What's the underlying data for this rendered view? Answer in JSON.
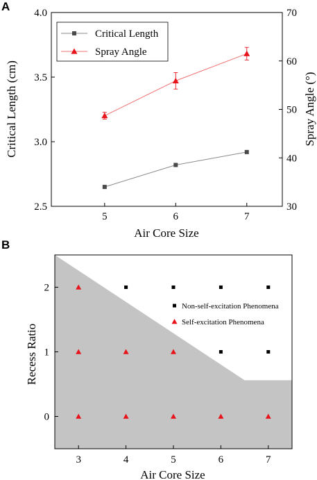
{
  "chart_data": [
    {
      "panel": "A",
      "type": "line",
      "xlabel": "Air Core Size",
      "ylabel_left": "Critical Length (cm)",
      "ylabel_right": "Spray Angle (°)",
      "x": [
        5,
        6,
        7
      ],
      "xticks": [
        "5",
        "6",
        "7"
      ],
      "xlim": [
        4.25,
        7.5
      ],
      "ylim_left": [
        2.5,
        4.0
      ],
      "yticks_left": [
        "2.5",
        "3.0",
        "3.5",
        "4.0"
      ],
      "ylim_right": [
        30,
        70
      ],
      "yticks_right": [
        "30",
        "40",
        "50",
        "60",
        "70"
      ],
      "legend_position": "top-left",
      "series": [
        {
          "name": "Critical Length",
          "axis": "left",
          "marker": "square",
          "color": "#4a4a4a",
          "values": [
            2.65,
            2.82,
            2.92
          ]
        },
        {
          "name": "Spray Angle",
          "axis": "right",
          "marker": "triangle",
          "color": "#e8141c",
          "values": [
            48.7,
            55.9,
            61.5
          ],
          "error": [
            0.7,
            1.7,
            1.3
          ]
        }
      ]
    },
    {
      "panel": "B",
      "type": "scatter",
      "xlabel": "Air Core Size",
      "ylabel": "Recess Ratio",
      "xlim": [
        2.5,
        7.5
      ],
      "ylim": [
        -0.5,
        2.5
      ],
      "xticks": [
        "3",
        "4",
        "5",
        "6",
        "7"
      ],
      "yticks": [
        "0",
        "1",
        "2"
      ],
      "legend_position": "right",
      "region": {
        "color": "#c4c4c4",
        "boundary_x": [
          2.5,
          6.5,
          7.5
        ],
        "boundary_y": [
          2.5,
          0.56,
          0.56
        ]
      },
      "series": [
        {
          "name": "Non-self-excitation Phenomena",
          "marker": "square",
          "color": "#000000",
          "points": [
            [
              4,
              2
            ],
            [
              5,
              2
            ],
            [
              6,
              2
            ],
            [
              7,
              2
            ],
            [
              6,
              1
            ],
            [
              7,
              1
            ]
          ]
        },
        {
          "name": "Self-excitation Phenomena",
          "marker": "triangle",
          "color": "#e8141c",
          "points": [
            [
              3,
              2
            ],
            [
              3,
              1
            ],
            [
              4,
              1
            ],
            [
              5,
              1
            ],
            [
              3,
              0
            ],
            [
              4,
              0
            ],
            [
              5,
              0
            ],
            [
              6,
              0
            ],
            [
              7,
              0
            ]
          ]
        }
      ]
    }
  ]
}
